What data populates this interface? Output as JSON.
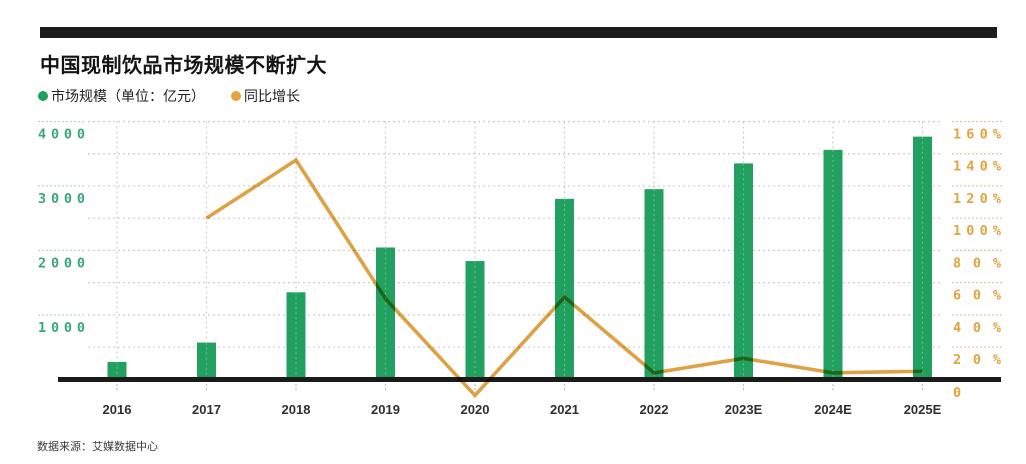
{
  "header": {
    "title": "中国现制饮品市场规模不断扩大"
  },
  "legend": [
    {
      "label": "市场规模（单位：亿元）",
      "color": "#21a05f"
    },
    {
      "label": "同比增长",
      "color": "#e5a43e"
    }
  ],
  "source": "数据来源：艾媒数据中心",
  "colors": {
    "bar_green": "#21a05f",
    "line_orange": "#dea144",
    "left_tick_green": "#38a878",
    "right_tick_orange": "#e2a23c",
    "grid_gray": "#cccccc",
    "axis_black": "#1b1b1b",
    "accent_bar_black": "#1c1c1c"
  },
  "chart_data": {
    "type": "bar",
    "subtype": "bar+line combo, dual axis",
    "title": "中国现制饮品市场规模不断扩大",
    "categories": [
      "2016",
      "2017",
      "2018",
      "2019",
      "2020",
      "2021",
      "2022",
      "2023E",
      "2024E",
      "2025E"
    ],
    "series": [
      {
        "name": "市场规模",
        "type": "bar",
        "unit": "亿元",
        "axis": "left",
        "color": "#21a05f",
        "values": [
          270,
          570,
          1350,
          2045,
          1835,
          2800,
          2950,
          3350,
          3560,
          3765
        ]
      },
      {
        "name": "同比增长",
        "type": "line",
        "unit": "%",
        "axis": "right",
        "color": "#dea144",
        "values": [
          null,
          100,
          136,
          50,
          -10,
          51,
          4,
          13,
          4,
          5
        ]
      }
    ],
    "left_axis": {
      "label": "市场规模（亿元）",
      "min": 0,
      "max": 4000,
      "grid_interval": 500,
      "tick_labels": [
        "4000",
        "3000",
        "2000",
        "1000"
      ]
    },
    "right_axis": {
      "label": "同比增长",
      "min": 0,
      "max": 160,
      "grid_interval": 20,
      "tick_labels": [
        "160%",
        "140%",
        "120%",
        "100%",
        "80%",
        "60%",
        "40%",
        "20%",
        "0"
      ]
    },
    "grid": "dashed, horizontal every 500 units (20%), vertical at each category",
    "legend_position": "top-left under title"
  }
}
